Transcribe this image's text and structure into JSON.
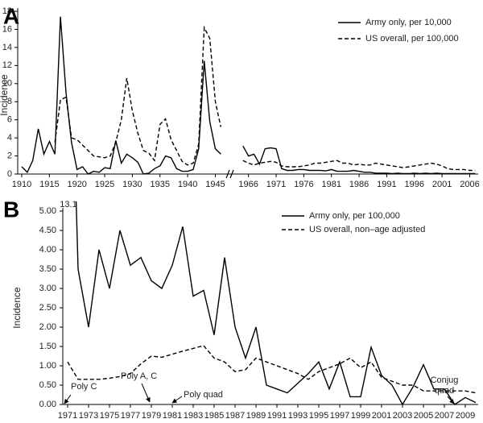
{
  "chart_data": [
    {
      "type": "line",
      "panel": "A",
      "y_label": "Incidence",
      "legend": "upper right",
      "categories": [
        "1910",
        null,
        null,
        null,
        null,
        "1915",
        null,
        null,
        null,
        null,
        "1920",
        null,
        null,
        null,
        null,
        "1925",
        null,
        null,
        null,
        null,
        "1930",
        null,
        null,
        null,
        null,
        "1935",
        null,
        null,
        null,
        null,
        "1940",
        null,
        null,
        null,
        null,
        "1945",
        null,
        null,
        null,
        null,
        null,
        "1966",
        null,
        null,
        null,
        null,
        "1971",
        null,
        null,
        null,
        null,
        "1976",
        null,
        null,
        null,
        null,
        "1981",
        null,
        null,
        null,
        null,
        "1986",
        null,
        null,
        null,
        null,
        "1991",
        null,
        null,
        null,
        null,
        "1996",
        null,
        null,
        null,
        null,
        "2001",
        null,
        null,
        null,
        null,
        "2006",
        null
      ],
      "series": [
        {
          "name": "Army only, per 10,000",
          "color": "#000000",
          "linestyle": "solid",
          "values": [
            0.8,
            0.2,
            1.5,
            5.0,
            2.2,
            3.6,
            2.2,
            17.4,
            9.0,
            3.5,
            0.5,
            0.8,
            0.0,
            0.3,
            0.2,
            0.7,
            0.6,
            3.7,
            1.2,
            2.2,
            1.8,
            1.3,
            0.0,
            0.1,
            0.6,
            0.9,
            2.0,
            1.8,
            0.6,
            0.3,
            0.3,
            0.5,
            2.8,
            12.5,
            5.8,
            2.8,
            2.2,
            null,
            null,
            null,
            3.1,
            2.0,
            2.2,
            1.1,
            2.8,
            2.9,
            2.8,
            0.6,
            0.4,
            0.4,
            0.5,
            0.5,
            0.4,
            0.4,
            0.4,
            0.35,
            0.5,
            0.3,
            0.3,
            0.3,
            0.4,
            0.3,
            0.2,
            0.2,
            0.1,
            0.1,
            0.1,
            0.05,
            0.1,
            0.05,
            0.05,
            0.1,
            0.05,
            0.1,
            0.05,
            0.1,
            0.05,
            0.05,
            0.05,
            0.05,
            0.05,
            0.05,
            0.05
          ]
        },
        {
          "name": "US overall, per 100,000",
          "color": "#000000",
          "linestyle": "dashed",
          "values": [
            null,
            null,
            null,
            null,
            null,
            null,
            3.5,
            8.2,
            8.5,
            4.0,
            3.8,
            3.2,
            2.6,
            2.0,
            1.9,
            1.8,
            2.0,
            3.5,
            6.0,
            10.6,
            7.0,
            4.5,
            2.6,
            2.3,
            1.5,
            5.5,
            6.1,
            3.8,
            2.6,
            1.4,
            1.0,
            1.2,
            3.3,
            16.2,
            15.0,
            8.0,
            5.2,
            null,
            null,
            null,
            1.5,
            1.2,
            1.0,
            1.2,
            1.3,
            1.4,
            1.3,
            0.9,
            0.8,
            0.8,
            0.8,
            0.9,
            1.0,
            1.2,
            1.2,
            1.3,
            1.4,
            1.5,
            1.2,
            1.2,
            1.0,
            1.1,
            1.0,
            1.0,
            1.2,
            1.1,
            1.0,
            0.9,
            0.8,
            0.7,
            0.8,
            0.9,
            1.0,
            1.1,
            1.2,
            1.1,
            0.9,
            0.6,
            0.5,
            0.5,
            0.5,
            0.4,
            0.4
          ]
        }
      ],
      "ylim": [
        0,
        18
      ],
      "yticks": [
        0,
        2,
        4,
        6,
        8,
        10,
        12,
        14,
        16,
        18
      ]
    },
    {
      "type": "line",
      "panel": "B",
      "y_label": "Incidence",
      "legend": "upper right",
      "categories": [
        "1971",
        null,
        "1973",
        null,
        "1975",
        null,
        "1977",
        null,
        "1979",
        null,
        "1981",
        null,
        "1983",
        null,
        "1985",
        null,
        "1987",
        null,
        "1989",
        null,
        "1991",
        null,
        "1993",
        null,
        "1995",
        null,
        "1997",
        null,
        "1999",
        null,
        "2001",
        null,
        "2003",
        null,
        "2005",
        null,
        "2007",
        null,
        "2009",
        null
      ],
      "series": [
        {
          "name": "Army only, per 100,000",
          "color": "#000000",
          "linestyle": "solid",
          "values": [
            13.1,
            3.5,
            2.0,
            4.0,
            3.0,
            4.5,
            3.6,
            3.8,
            3.2,
            3.0,
            3.6,
            4.6,
            2.8,
            2.95,
            1.8,
            3.8,
            2.0,
            1.2,
            2.0,
            0.5,
            0.4,
            0.3,
            0.55,
            0.8,
            1.1,
            0.4,
            1.1,
            0.2,
            0.2,
            1.48,
            0.75,
            0.5,
            0.0,
            0.45,
            1.03,
            0.4,
            0.4,
            0.0,
            0.18,
            0.05
          ],
          "value_labels": [
            "13.1",
            null,
            null,
            null,
            null,
            null,
            null,
            null,
            null,
            null,
            null,
            null,
            null,
            null,
            null,
            null,
            null,
            null,
            null,
            null,
            null,
            null,
            null,
            null,
            null,
            null,
            null,
            null,
            null,
            null,
            null,
            null,
            null,
            null,
            null,
            null,
            null,
            null,
            null,
            null
          ]
        },
        {
          "name": "US overall, non–age adjusted",
          "color": "#000000",
          "linestyle": "dashed",
          "values": [
            1.1,
            0.65,
            0.65,
            0.65,
            0.68,
            0.72,
            0.8,
            1.05,
            1.25,
            1.22,
            1.3,
            1.38,
            1.45,
            1.52,
            1.2,
            1.1,
            0.85,
            0.9,
            1.2,
            1.1,
            1.0,
            0.9,
            0.8,
            0.65,
            0.85,
            0.95,
            1.05,
            1.2,
            0.95,
            1.1,
            0.7,
            0.6,
            0.5,
            0.5,
            0.35,
            0.35,
            0.35,
            0.35,
            0.35,
            0.3
          ]
        }
      ],
      "ylim": [
        0,
        5
      ],
      "yticks": [
        {
          "value": 0,
          "label": "0.00"
        },
        {
          "value": 0.5,
          "label": "0.50"
        },
        {
          "value": 1,
          "label": "1.00"
        },
        {
          "value": 1.5,
          "label": "1.50"
        },
        {
          "value": 2,
          "label": "2.00"
        },
        {
          "value": 2.5,
          "label": "2.50"
        },
        {
          "value": 3,
          "label": "3.00"
        },
        {
          "value": 3.5,
          "label": "3.50"
        },
        {
          "value": 4,
          "label": "4.00"
        },
        {
          "value": 4.5,
          "label": "4.50"
        },
        {
          "value": 5,
          "label": "5.00"
        }
      ],
      "annotations": [
        "Poly C",
        "Poly A, C",
        "Poly quad",
        [
          "Conjug",
          "quad"
        ]
      ]
    }
  ]
}
